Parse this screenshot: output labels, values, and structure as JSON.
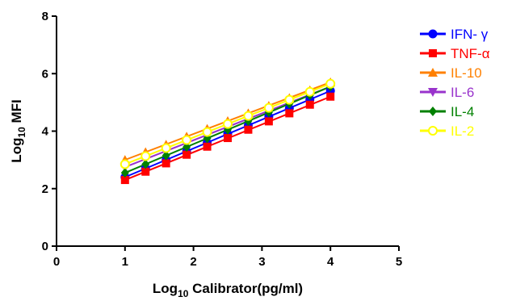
{
  "chart_data": {
    "type": "scatter",
    "xlabel": {
      "base": "Log",
      "sub": "10",
      "rest": " Calibrator(pg/ml)"
    },
    "ylabel": {
      "base": "Log",
      "sub": "10",
      "rest": "  MFI"
    },
    "xlim": [
      0,
      5
    ],
    "ylim": [
      0,
      8
    ],
    "xticks": [
      0,
      1,
      2,
      3,
      4,
      5
    ],
    "yticks": [
      0,
      2,
      4,
      6,
      8
    ],
    "xtick_labels": [
      "0",
      "1",
      "2",
      "3",
      "4",
      "5"
    ],
    "ytick_labels": [
      "0",
      "2",
      "4",
      "6",
      "8"
    ],
    "grid": false,
    "legend_position": "right",
    "x": [
      1.0,
      1.3,
      1.6,
      1.9,
      2.2,
      2.5,
      2.8,
      3.1,
      3.4,
      3.7,
      4.0
    ],
    "series": [
      {
        "name": "IFN- γ",
        "color": "#0000ff",
        "marker": "circle",
        "values": [
          2.4,
          2.7,
          2.99,
          3.29,
          3.59,
          3.9,
          4.19,
          4.5,
          4.79,
          5.1,
          5.4
        ],
        "fit": [
          2.4,
          5.4
        ]
      },
      {
        "name": "TNF-α",
        "color": "#ff0000",
        "marker": "square",
        "values": [
          2.3,
          2.59,
          2.88,
          3.18,
          3.46,
          3.76,
          4.05,
          4.34,
          4.62,
          4.92,
          5.2
        ],
        "fit": [
          2.3,
          5.2
        ]
      },
      {
        "name": "IL-10",
        "color": "#ff8000",
        "marker": "triangle-up",
        "values": [
          3.0,
          3.27,
          3.53,
          3.81,
          4.08,
          4.35,
          4.62,
          4.88,
          5.15,
          5.42,
          5.7
        ],
        "fit": [
          3.0,
          5.7
        ]
      },
      {
        "name": "IL-6",
        "color": "#9933cc",
        "marker": "triangle-down",
        "values": [
          2.75,
          3.03,
          3.31,
          3.6,
          3.87,
          4.15,
          4.43,
          4.72,
          5.0,
          5.27,
          5.55
        ],
        "fit": [
          2.75,
          5.55
        ]
      },
      {
        "name": "IL-4",
        "color": "#008000",
        "marker": "diamond",
        "values": [
          2.55,
          2.85,
          3.15,
          3.45,
          3.75,
          4.05,
          4.35,
          4.65,
          4.95,
          5.25,
          5.55
        ],
        "fit": [
          2.55,
          5.55
        ]
      },
      {
        "name": "IL-2",
        "color": "#ffff00",
        "marker": "circle-open",
        "values": [
          2.85,
          3.13,
          3.41,
          3.69,
          3.97,
          4.25,
          4.53,
          4.81,
          5.09,
          5.37,
          5.65
        ],
        "fit": [
          2.85,
          5.65
        ]
      }
    ]
  }
}
